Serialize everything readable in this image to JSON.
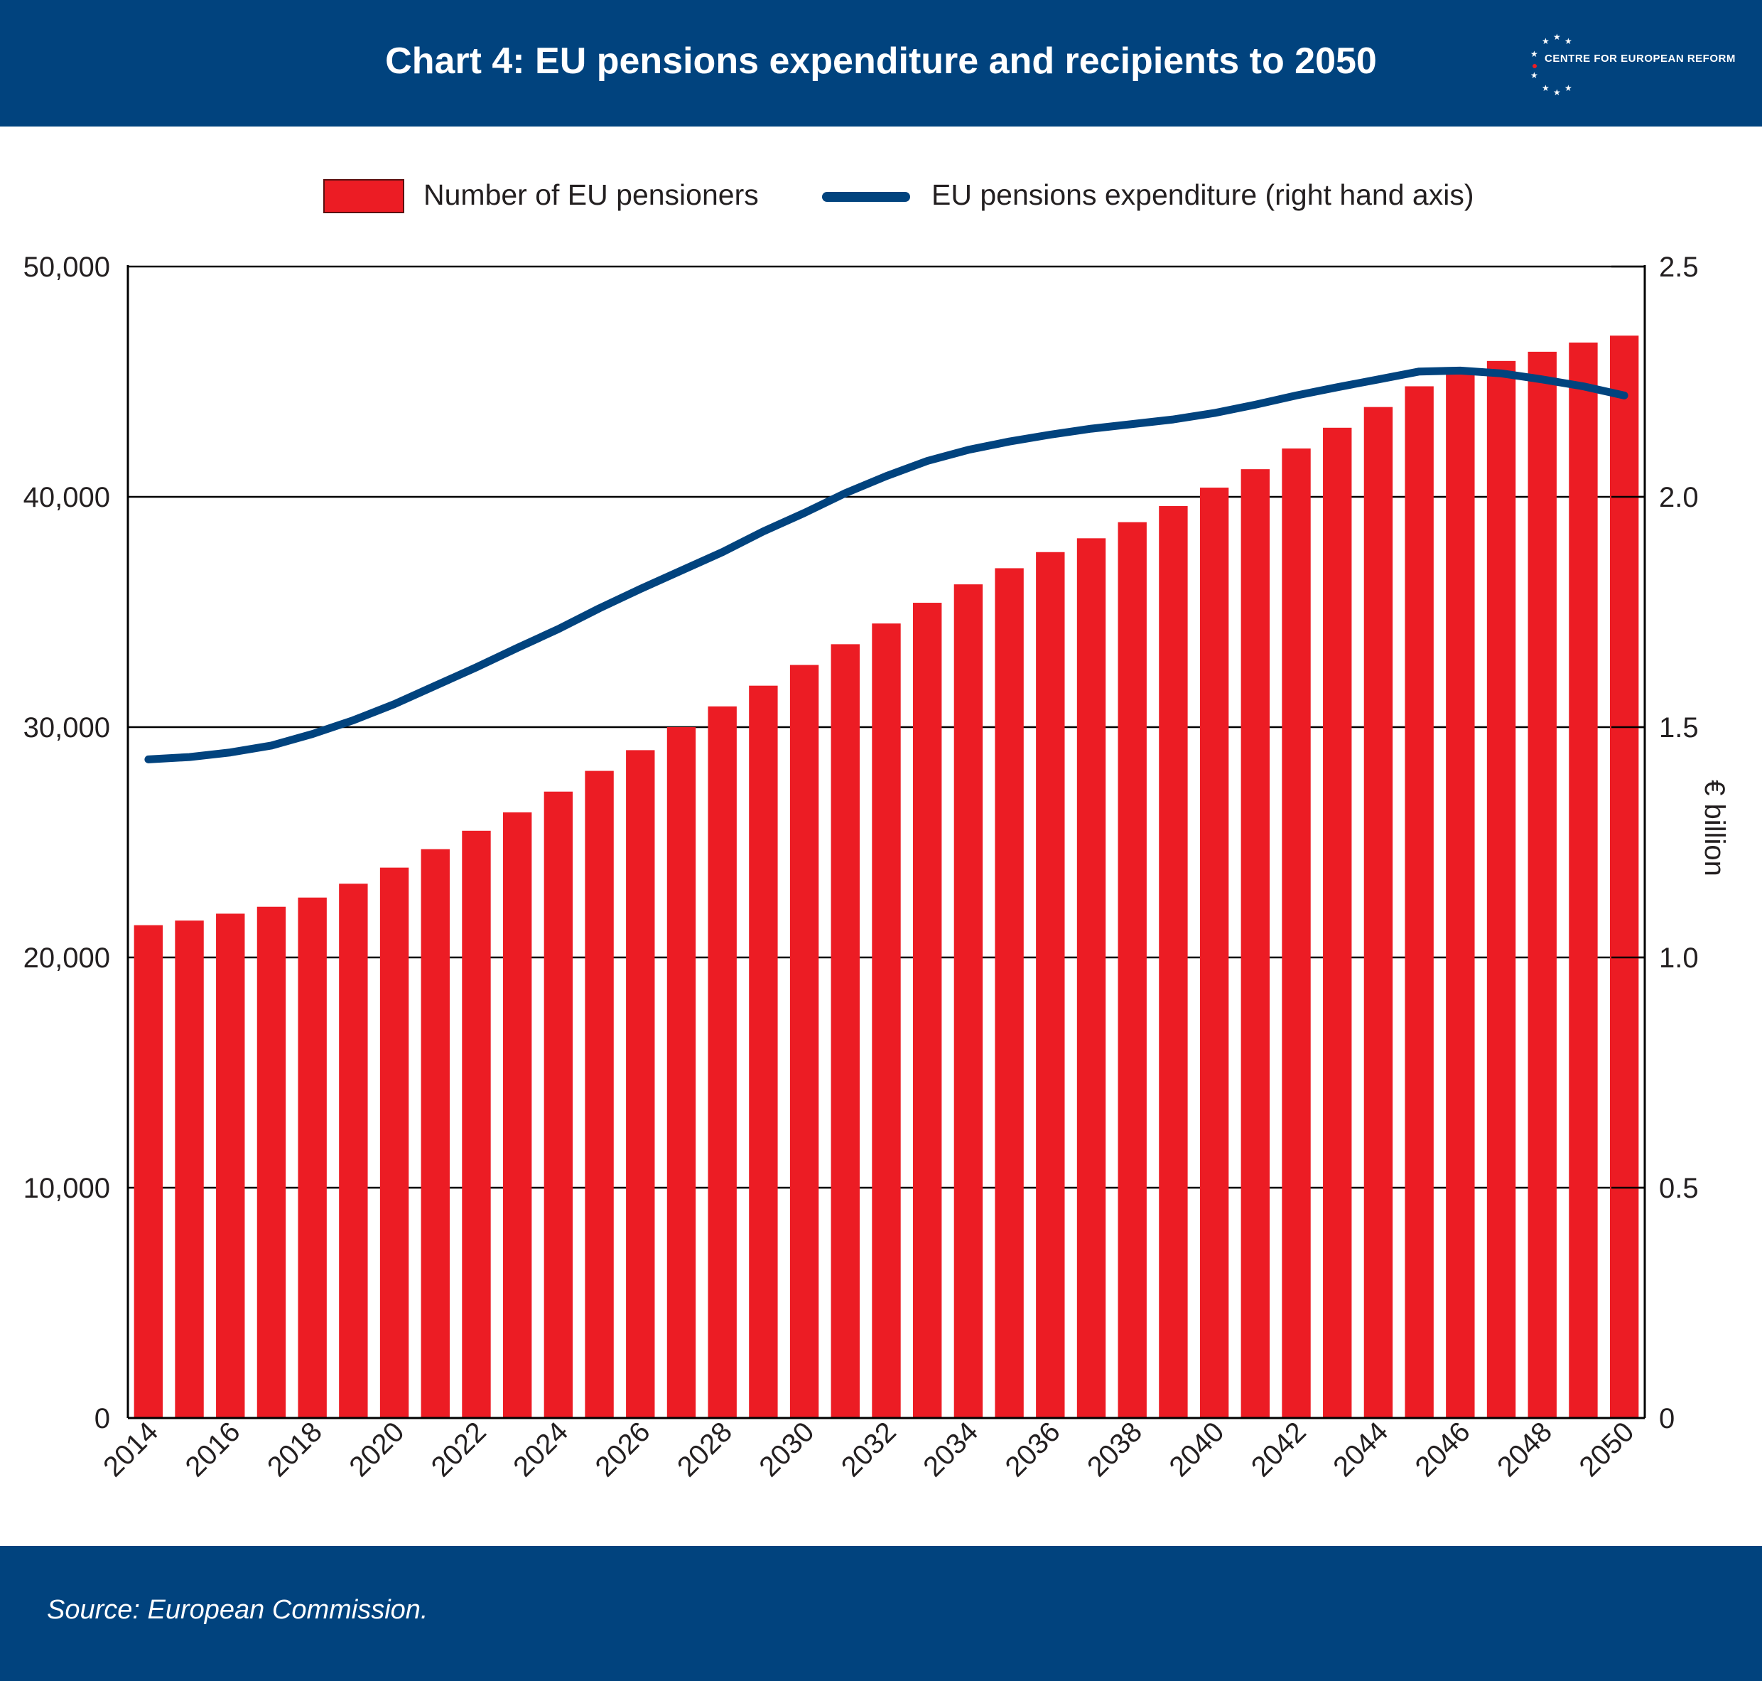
{
  "header": {
    "title": "Chart 4: EU pensions expenditure and recipients to 2050",
    "logo_text": "CENTRE FOR EUROPEAN REFORM"
  },
  "footer": {
    "source": "Source: European Commission."
  },
  "colors": {
    "header_bg": "#01437e",
    "bar": "#ec1c24",
    "line": "#01437e",
    "axis": "#000000"
  },
  "chart_data": {
    "type": "bar",
    "legend_placement": "top-center",
    "grid": true,
    "x": [
      2014,
      2015,
      2016,
      2017,
      2018,
      2019,
      2020,
      2021,
      2022,
      2023,
      2024,
      2025,
      2026,
      2027,
      2028,
      2029,
      2030,
      2031,
      2032,
      2033,
      2034,
      2035,
      2036,
      2037,
      2038,
      2039,
      2040,
      2041,
      2042,
      2043,
      2044,
      2045,
      2046,
      2047,
      2048,
      2049,
      2050
    ],
    "x_tick_labels": [
      "2014",
      "2016",
      "2018",
      "2020",
      "2022",
      "2024",
      "2026",
      "2028",
      "2030",
      "2032",
      "2034",
      "2036",
      "2038",
      "2040",
      "2042",
      "2044",
      "2046",
      "2048",
      "2050"
    ],
    "y_left": {
      "label": "",
      "ylim": [
        0,
        50000
      ],
      "ticks": [
        "0",
        "10,000",
        "20,000",
        "30,000",
        "40,000",
        "50,000"
      ]
    },
    "y_right": {
      "label": "€ billion",
      "ylim": [
        0,
        2.5
      ],
      "ticks": [
        "0",
        "0.5",
        "1.0",
        "1.5",
        "2.0",
        "2.5"
      ]
    },
    "series": [
      {
        "name": "Number of EU pensioners",
        "type": "bar",
        "axis": "left",
        "values": [
          21400,
          21600,
          21900,
          22200,
          22600,
          23200,
          23900,
          24700,
          25500,
          26300,
          27200,
          28100,
          29000,
          30000,
          30900,
          31800,
          32700,
          33600,
          34500,
          35400,
          36200,
          36900,
          37600,
          38200,
          38900,
          39600,
          40400,
          41200,
          42100,
          43000,
          43900,
          44800,
          45600,
          45900,
          46300,
          46700,
          47000
        ]
      },
      {
        "name": "EU pensions expenditure (right hand axis)",
        "type": "line",
        "axis": "right",
        "values": [
          1.43,
          1.435,
          1.445,
          1.46,
          1.485,
          1.515,
          1.55,
          1.59,
          1.63,
          1.672,
          1.713,
          1.758,
          1.8,
          1.84,
          1.88,
          1.925,
          1.965,
          2.008,
          2.045,
          2.078,
          2.102,
          2.12,
          2.135,
          2.148,
          2.158,
          2.168,
          2.182,
          2.2,
          2.22,
          2.238,
          2.255,
          2.272,
          2.274,
          2.268,
          2.255,
          2.24,
          2.22
        ]
      }
    ]
  }
}
